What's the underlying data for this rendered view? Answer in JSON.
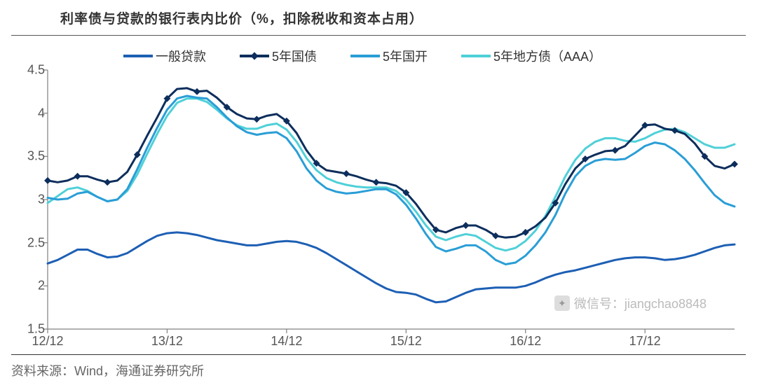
{
  "title": "利率债与贷款的银行表内比价（%，扣除税收和资本占用）",
  "source": "资料来源：Wind，海通证券研究所",
  "watermark": "微信号：jiangchao8848",
  "chart": {
    "type": "line",
    "background_color": "#ffffff",
    "axis_color": "#808080",
    "text_color": "#555555",
    "ylim": [
      1.5,
      4.5
    ],
    "ytick_step": 0.5,
    "yticks": [
      1.5,
      2,
      2.5,
      3,
      3.5,
      4,
      4.5
    ],
    "xticks_labels": [
      "12/12",
      "13/12",
      "14/12",
      "15/12",
      "16/12",
      "17/12"
    ],
    "xticks_idx": [
      0,
      12,
      24,
      36,
      48,
      60
    ],
    "n_points": 70,
    "legend": [
      {
        "label": "一般贷款",
        "color": "#1d5fb4",
        "width": 3,
        "marker": false
      },
      {
        "label": "5年国债",
        "color": "#0d2e5c",
        "width": 3,
        "marker": true
      },
      {
        "label": "5年国开",
        "color": "#2a9ed6",
        "width": 3,
        "marker": false
      },
      {
        "label": "5年地方债（AAA）",
        "color": "#4fd0d8",
        "width": 3,
        "marker": false
      }
    ],
    "series": {
      "loan": {
        "color": "#1d5fb4",
        "width": 3,
        "marker": false,
        "values": [
          2.26,
          2.3,
          2.36,
          2.42,
          2.42,
          2.37,
          2.33,
          2.34,
          2.38,
          2.45,
          2.52,
          2.58,
          2.61,
          2.62,
          2.61,
          2.59,
          2.56,
          2.53,
          2.51,
          2.49,
          2.47,
          2.47,
          2.49,
          2.51,
          2.52,
          2.51,
          2.48,
          2.44,
          2.38,
          2.31,
          2.24,
          2.17,
          2.1,
          2.03,
          1.97,
          1.93,
          1.92,
          1.9,
          1.85,
          1.81,
          1.82,
          1.87,
          1.92,
          1.96,
          1.97,
          1.98,
          1.98,
          1.98,
          2.0,
          2.04,
          2.09,
          2.13,
          2.16,
          2.18,
          2.21,
          2.24,
          2.27,
          2.3,
          2.32,
          2.33,
          2.33,
          2.32,
          2.3,
          2.31,
          2.33,
          2.36,
          2.4,
          2.44,
          2.47,
          2.48
        ]
      },
      "gov5y": {
        "color": "#0d2e5c",
        "width": 3,
        "marker": true,
        "values": [
          3.22,
          3.2,
          3.22,
          3.27,
          3.27,
          3.23,
          3.2,
          3.22,
          3.32,
          3.52,
          3.74,
          3.95,
          4.17,
          4.28,
          4.29,
          4.25,
          4.26,
          4.18,
          4.07,
          3.99,
          3.94,
          3.93,
          3.97,
          3.99,
          3.91,
          3.77,
          3.57,
          3.42,
          3.34,
          3.32,
          3.3,
          3.27,
          3.23,
          3.2,
          3.19,
          3.16,
          3.08,
          2.95,
          2.79,
          2.65,
          2.62,
          2.67,
          2.7,
          2.7,
          2.65,
          2.58,
          2.56,
          2.57,
          2.62,
          2.69,
          2.79,
          2.96,
          3.18,
          3.36,
          3.47,
          3.52,
          3.56,
          3.57,
          3.62,
          3.74,
          3.86,
          3.87,
          3.82,
          3.8,
          3.76,
          3.65,
          3.5,
          3.39,
          3.36,
          3.41
        ]
      },
      "cdb5y": {
        "color": "#2a9ed6",
        "width": 3,
        "marker": false,
        "values": [
          3.02,
          3.0,
          3.01,
          3.07,
          3.09,
          3.03,
          2.98,
          3.0,
          3.12,
          3.35,
          3.6,
          3.83,
          4.04,
          4.17,
          4.2,
          4.18,
          4.17,
          4.07,
          3.95,
          3.85,
          3.78,
          3.75,
          3.77,
          3.78,
          3.71,
          3.56,
          3.36,
          3.22,
          3.13,
          3.09,
          3.07,
          3.08,
          3.1,
          3.12,
          3.12,
          3.06,
          2.94,
          2.78,
          2.6,
          2.45,
          2.4,
          2.43,
          2.47,
          2.47,
          2.4,
          2.3,
          2.25,
          2.27,
          2.35,
          2.47,
          2.62,
          2.82,
          3.07,
          3.27,
          3.39,
          3.45,
          3.47,
          3.46,
          3.47,
          3.54,
          3.62,
          3.66,
          3.64,
          3.57,
          3.47,
          3.34,
          3.19,
          3.05,
          2.96,
          2.92
        ]
      },
      "local5y": {
        "color": "#4fd0d8",
        "width": 3,
        "marker": false,
        "values": [
          2.96,
          3.04,
          3.12,
          3.14,
          3.1,
          3.03,
          2.98,
          3.0,
          3.1,
          3.29,
          3.53,
          3.76,
          3.97,
          4.12,
          4.17,
          4.17,
          4.13,
          4.04,
          3.94,
          3.86,
          3.82,
          3.82,
          3.86,
          3.88,
          3.81,
          3.67,
          3.48,
          3.34,
          3.25,
          3.2,
          3.17,
          3.15,
          3.14,
          3.14,
          3.14,
          3.1,
          3.0,
          2.86,
          2.7,
          2.57,
          2.53,
          2.57,
          2.6,
          2.58,
          2.51,
          2.44,
          2.41,
          2.44,
          2.52,
          2.64,
          2.81,
          3.03,
          3.27,
          3.46,
          3.59,
          3.67,
          3.71,
          3.71,
          3.68,
          3.67,
          3.71,
          3.77,
          3.81,
          3.82,
          3.78,
          3.71,
          3.64,
          3.6,
          3.6,
          3.64
        ]
      }
    }
  }
}
